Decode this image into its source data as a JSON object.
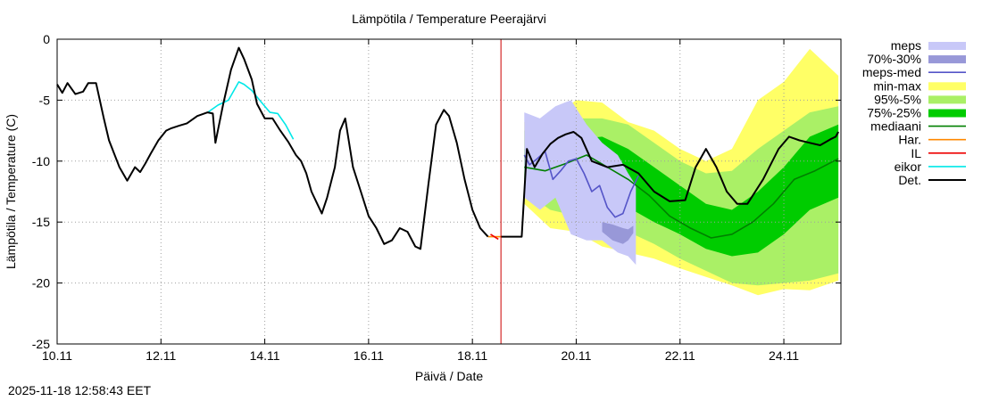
{
  "chart_data": {
    "type": "line",
    "title": "Lämpötila / Temperature   Peerajärvi",
    "xlabel": "Päivä / Date",
    "ylabel": "Lämpötila / Temperature (C)",
    "ylim": [
      -25,
      0
    ],
    "xlim": [
      10.0,
      25.1
    ],
    "x_unit": "day of November 2025",
    "y_ticks": [
      "0",
      "-5",
      "-10",
      "-15",
      "-20",
      "-25"
    ],
    "y_tick_values": [
      0,
      -5,
      -10,
      -15,
      -20,
      -25
    ],
    "x_ticks": [
      "10.11",
      "12.11",
      "14.11",
      "16.11",
      "18.11",
      "20.11",
      "22.11",
      "24.11"
    ],
    "x_tick_values": [
      10,
      12,
      14,
      16,
      18,
      20,
      22,
      24
    ],
    "grid": true,
    "legend_position": "right",
    "now_line_x": 18.55,
    "colors": {
      "meps": "#c8c8f8",
      "meps_70_30": "#9898d8",
      "meps_med": "#5555c8",
      "min_max": "#ffff66",
      "p95_5": "#aaf066",
      "p75_25": "#00cc00",
      "mediaani": "#008000",
      "har": "#ff8800",
      "il": "#ee0000",
      "eikor": "#00e8e8",
      "det": "#000000",
      "now_line": "#cc0000"
    },
    "legend": [
      {
        "label": "meps",
        "key": "meps",
        "style": "band"
      },
      {
        "label": "70%-30%",
        "key": "meps_70_30",
        "style": "band"
      },
      {
        "label": "meps-med",
        "key": "meps_med",
        "style": "line"
      },
      {
        "label": "min-max",
        "key": "min_max",
        "style": "band"
      },
      {
        "label": "95%-5%",
        "key": "p95_5",
        "style": "band"
      },
      {
        "label": "75%-25%",
        "key": "p75_25",
        "style": "band"
      },
      {
        "label": "mediaani",
        "key": "mediaani",
        "style": "line"
      },
      {
        "label": "Har.",
        "key": "har",
        "style": "line"
      },
      {
        "label": "IL",
        "key": "il",
        "style": "line"
      },
      {
        "label": "eikor",
        "key": "eikor",
        "style": "line"
      },
      {
        "label": "Det.",
        "key": "det",
        "style": "line"
      }
    ],
    "series": [
      {
        "name": "Det.",
        "key": "det",
        "x": [
          10.0,
          10.1,
          10.2,
          10.35,
          10.5,
          10.6,
          10.75,
          10.9,
          11.0,
          11.2,
          11.35,
          11.5,
          11.6,
          11.7,
          11.8,
          11.95,
          12.1,
          12.2,
          12.35,
          12.5,
          12.7,
          12.9,
          13.0,
          13.05,
          13.1,
          13.2,
          13.35,
          13.5,
          13.6,
          13.75,
          13.85,
          14.0,
          14.15,
          14.3,
          14.45,
          14.6,
          14.7,
          14.8,
          14.9,
          15.0,
          15.1,
          15.2,
          15.35,
          15.45,
          15.55,
          15.7,
          15.85,
          16.0,
          16.15,
          16.3,
          16.45,
          16.6,
          16.75,
          16.9,
          17.0,
          17.15,
          17.3,
          17.45,
          17.55,
          17.7,
          17.85,
          18.0,
          18.15,
          18.3
        ],
        "y": [
          -3.7,
          -4.4,
          -3.6,
          -4.5,
          -4.3,
          -3.6,
          -3.6,
          -6.5,
          -8.3,
          -10.5,
          -11.6,
          -10.5,
          -10.9,
          -10.2,
          -9.4,
          -8.3,
          -7.5,
          -7.3,
          -7.1,
          -6.9,
          -6.3,
          -6.0,
          -6.1,
          -8.5,
          -7.4,
          -5.3,
          -2.5,
          -0.7,
          -1.6,
          -3.3,
          -5.3,
          -6.5,
          -6.5,
          -7.5,
          -8.4,
          -9.5,
          -10.0,
          -11.0,
          -12.5,
          -13.4,
          -14.3,
          -13.0,
          -10.5,
          -7.5,
          -6.5,
          -10.5,
          -12.5,
          -14.5,
          -15.5,
          -16.8,
          -16.5,
          -15.5,
          -15.8,
          -17.0,
          -17.2,
          -12.0,
          -7.0,
          -5.8,
          -6.3,
          -8.5,
          -11.5,
          -14.0,
          -15.5,
          -16.2
        ]
      },
      {
        "name": "Det.",
        "key": "det",
        "x": [
          18.55,
          18.95,
          19.05,
          19.2,
          19.35,
          19.5,
          19.65,
          19.8,
          19.95,
          20.1,
          20.3,
          20.6,
          20.9,
          21.2,
          21.5,
          21.8,
          22.1,
          22.3,
          22.5,
          22.7,
          22.9,
          23.1,
          23.3,
          23.6,
          23.9,
          24.1,
          24.3,
          24.5,
          24.7,
          24.9,
          25.0,
          25.05
        ],
        "y": [
          -16.2,
          -16.2,
          -9.0,
          -10.5,
          -9.4,
          -8.6,
          -8.1,
          -7.8,
          -7.6,
          -8.1,
          -10.0,
          -10.5,
          -10.3,
          -11.0,
          -12.5,
          -13.3,
          -13.2,
          -10.5,
          -9.0,
          -10.5,
          -12.5,
          -13.5,
          -13.5,
          -11.5,
          -9.0,
          -8.0,
          -8.3,
          -8.5,
          -8.7,
          -8.2,
          -8.0,
          -7.6
        ]
      },
      {
        "name": "Har.",
        "key": "har",
        "x": [
          18.3,
          18.55
        ],
        "y": [
          -16.2,
          -16.2
        ]
      },
      {
        "name": "IL",
        "key": "il",
        "x": [
          18.35,
          18.5
        ],
        "y": [
          -16.0,
          -16.4
        ]
      },
      {
        "name": "eikor",
        "key": "eikor",
        "x": [
          12.9,
          13.1,
          13.3,
          13.5,
          13.6,
          13.75,
          13.9,
          14.1,
          14.25,
          14.4,
          14.55
        ],
        "y": [
          -6.0,
          -5.4,
          -5.0,
          -3.5,
          -3.7,
          -4.2,
          -5.0,
          -6.0,
          -6.1,
          -7.0,
          -8.2
        ]
      },
      {
        "name": "mediaani",
        "key": "mediaani",
        "x": [
          19.0,
          19.4,
          19.8,
          20.2,
          20.6,
          21.0,
          21.4,
          21.8,
          22.2,
          22.6,
          23.0,
          23.4,
          23.8,
          24.2,
          24.6,
          25.05
        ],
        "y": [
          -10.5,
          -10.8,
          -10.2,
          -9.5,
          -10.5,
          -11.5,
          -12.8,
          -14.5,
          -15.5,
          -16.3,
          -16.0,
          -15.0,
          -13.5,
          -11.5,
          -10.8,
          -9.8
        ]
      },
      {
        "name": "meps-med",
        "key": "meps_med",
        "x": [
          19.0,
          19.1,
          19.25,
          19.4,
          19.55,
          19.7,
          19.85,
          20.0,
          20.15,
          20.3,
          20.45,
          20.6,
          20.75,
          20.9,
          21.05,
          21.2
        ],
        "y": [
          -9.5,
          -10.3,
          -9.8,
          -9.2,
          -11.5,
          -10.8,
          -10.0,
          -9.8,
          -11.0,
          -12.5,
          -12.0,
          -13.8,
          -14.6,
          -14.3,
          -12.5,
          -11.2
        ]
      }
    ],
    "bands": [
      {
        "name": "min-max",
        "key": "min_max",
        "x": [
          19.0,
          19.5,
          20.0,
          20.5,
          21.0,
          21.5,
          22.0,
          22.5,
          23.0,
          23.5,
          24.0,
          24.5,
          25.05
        ],
        "upper": [
          -6.8,
          -6.5,
          -5.0,
          -5.2,
          -6.8,
          -7.5,
          -9.0,
          -10.0,
          -9.0,
          -5.0,
          -3.5,
          -0.8,
          -3.0
        ],
        "lower": [
          -13.5,
          -15.5,
          -15.8,
          -17.0,
          -17.5,
          -18.0,
          -18.8,
          -19.5,
          -20.2,
          -21.0,
          -20.5,
          -20.6,
          -19.8
        ]
      },
      {
        "name": "95%-5%",
        "key": "p95_5",
        "x": [
          19.0,
          19.5,
          20.0,
          20.5,
          21.0,
          21.5,
          22.0,
          22.5,
          23.0,
          23.5,
          24.0,
          24.5,
          25.05
        ],
        "upper": [
          -7.5,
          -7.2,
          -6.5,
          -6.5,
          -7.0,
          -8.5,
          -10.0,
          -11.0,
          -10.8,
          -9.0,
          -7.5,
          -6.0,
          -5.5
        ],
        "lower": [
          -12.5,
          -14.0,
          -14.5,
          -15.5,
          -15.8,
          -16.8,
          -18.0,
          -19.0,
          -20.0,
          -20.2,
          -20.0,
          -19.8,
          -19.2
        ]
      },
      {
        "name": "75%-25%",
        "key": "p75_25",
        "x": [
          19.0,
          19.5,
          20.0,
          20.5,
          21.0,
          21.5,
          22.0,
          22.5,
          23.0,
          23.5,
          24.0,
          24.5,
          25.05
        ],
        "upper": [
          -9.0,
          -8.8,
          -8.2,
          -8.0,
          -9.0,
          -10.5,
          -12.0,
          -13.5,
          -14.0,
          -12.5,
          -10.5,
          -8.0,
          -7.0
        ],
        "lower": [
          -11.5,
          -12.0,
          -12.5,
          -13.0,
          -13.8,
          -15.0,
          -16.0,
          -17.2,
          -17.8,
          -17.5,
          -16.0,
          -14.0,
          -13.0
        ]
      },
      {
        "name": "meps",
        "key": "meps",
        "x": [
          19.0,
          19.3,
          19.6,
          19.9,
          20.2,
          20.5,
          20.8,
          21.0,
          21.15
        ],
        "upper": [
          -6.0,
          -6.5,
          -5.5,
          -5.0,
          -7.0,
          -8.5,
          -9.5,
          -11.0,
          -12.0
        ],
        "lower": [
          -13.0,
          -14.0,
          -13.0,
          -16.0,
          -16.5,
          -16.5,
          -17.5,
          -17.8,
          -18.5
        ]
      },
      {
        "name": "70%-30%",
        "key": "meps_70_30",
        "x": [
          20.5,
          20.7,
          20.9,
          21.0,
          21.1
        ],
        "upper": [
          -15.0,
          -15.2,
          -15.5,
          -15.6,
          -15.3
        ],
        "lower": [
          -15.8,
          -16.5,
          -16.8,
          -16.5,
          -15.9
        ]
      }
    ]
  },
  "footer": {
    "timestamp": "2025-11-18 12:58:43 EET"
  }
}
